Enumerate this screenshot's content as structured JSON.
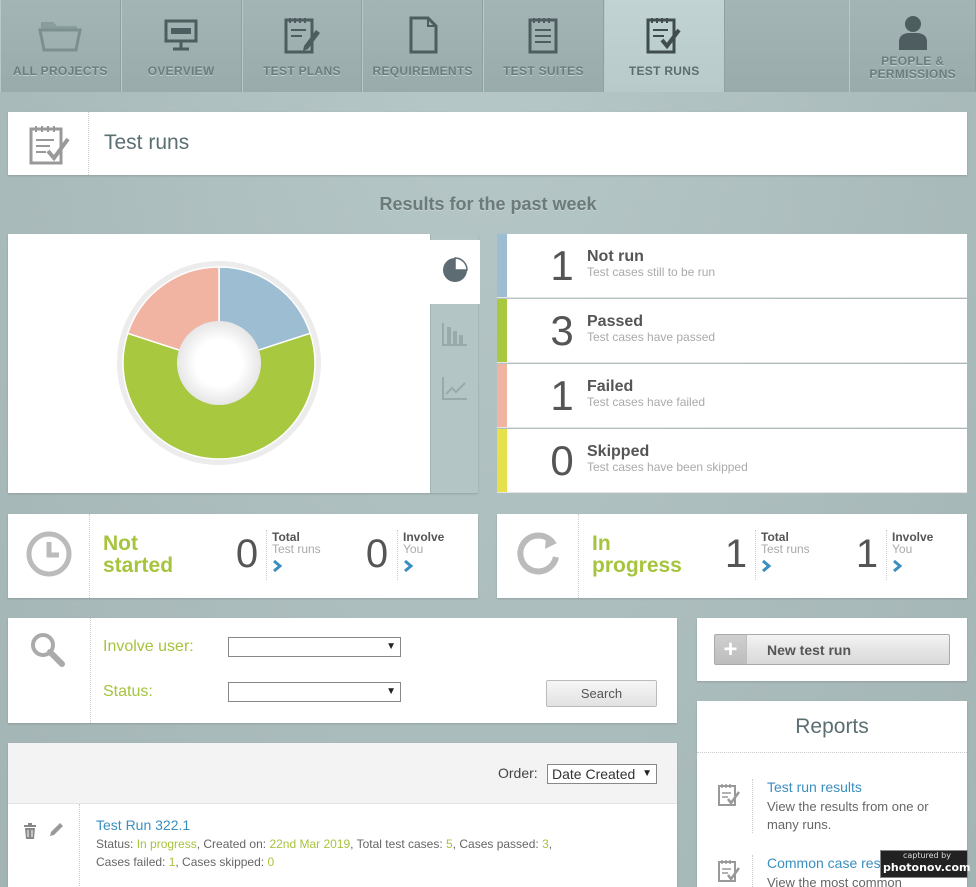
{
  "nav": {
    "tabs": [
      {
        "label": "ALL PROJECTS",
        "icon": "folder-icon"
      },
      {
        "label": "OVERVIEW",
        "icon": "presentation-board-icon"
      },
      {
        "label": "TEST PLANS",
        "icon": "notepad-pencil-icon"
      },
      {
        "label": "REQUIREMENTS",
        "icon": "document-icon"
      },
      {
        "label": "TEST SUITES",
        "icon": "list-document-icon"
      },
      {
        "label": "TEST RUNS",
        "icon": "notepad-check-icon",
        "active": true
      },
      {
        "label": "PEOPLE & PERMISSIONS",
        "icon": "person-icon"
      }
    ]
  },
  "page": {
    "title": "Test runs"
  },
  "week": {
    "heading": "Results for the past week"
  },
  "chart_data": {
    "type": "pie",
    "variant": "donut",
    "categories": [
      "Not run",
      "Passed",
      "Failed",
      "Skipped"
    ],
    "values": [
      1,
      3,
      1,
      0
    ],
    "colors": [
      "#9dbdd3",
      "#a7c83f",
      "#f1b3a2",
      "#e6e14a"
    ]
  },
  "stats": [
    {
      "count": "1",
      "label": "Not run",
      "sub": "Test cases still to be run",
      "color": "#9dbdd3"
    },
    {
      "count": "3",
      "label": "Passed",
      "sub": "Test cases have passed",
      "color": "#a7c83f"
    },
    {
      "count": "1",
      "label": "Failed",
      "sub": "Test cases have failed",
      "color": "#f1b3a2"
    },
    {
      "count": "0",
      "label": "Skipped",
      "sub": "Test cases have been skipped",
      "color": "#e6e14a"
    }
  ],
  "summary": {
    "not_started": {
      "title_line1": "Not",
      "title_line2": "started",
      "total": "0",
      "total_label": "Total",
      "total_sub": "Test runs",
      "involve": "0",
      "involve_label": "Involve",
      "involve_sub": "You"
    },
    "in_progress": {
      "title_line1": "In",
      "title_line2": "progress",
      "total": "1",
      "total_label": "Total",
      "total_sub": "Test runs",
      "involve": "1",
      "involve_label": "Involve",
      "involve_sub": "You"
    }
  },
  "search": {
    "involve_label": "Involve user:",
    "involve_value": "",
    "status_label": "Status:",
    "status_value": "",
    "button": "Search"
  },
  "new_run": {
    "label": "New test run"
  },
  "reports": {
    "heading": "Reports",
    "items": [
      {
        "title": "Test run results",
        "desc": "View the results from one or many runs."
      },
      {
        "title": "Common case results",
        "desc": "View the most common"
      }
    ]
  },
  "runs": {
    "order_label": "Order:",
    "order_value": "Date Created",
    "items": [
      {
        "title": "Test Run 322.1",
        "status_label": "Status: ",
        "status": "In progress",
        "created_label": ", Created on: ",
        "created": "22nd Mar 2019",
        "total_label": ", Total test cases: ",
        "total": "5",
        "passed_label": ", Cases passed: ",
        "passed": "3",
        "comma": ",",
        "failed_label": "Cases failed: ",
        "failed": "1",
        "skipped_label": ", Cases skipped: ",
        "skipped": "0"
      }
    ]
  },
  "watermark": {
    "line1": "captured by",
    "line2": "photonov.com"
  }
}
